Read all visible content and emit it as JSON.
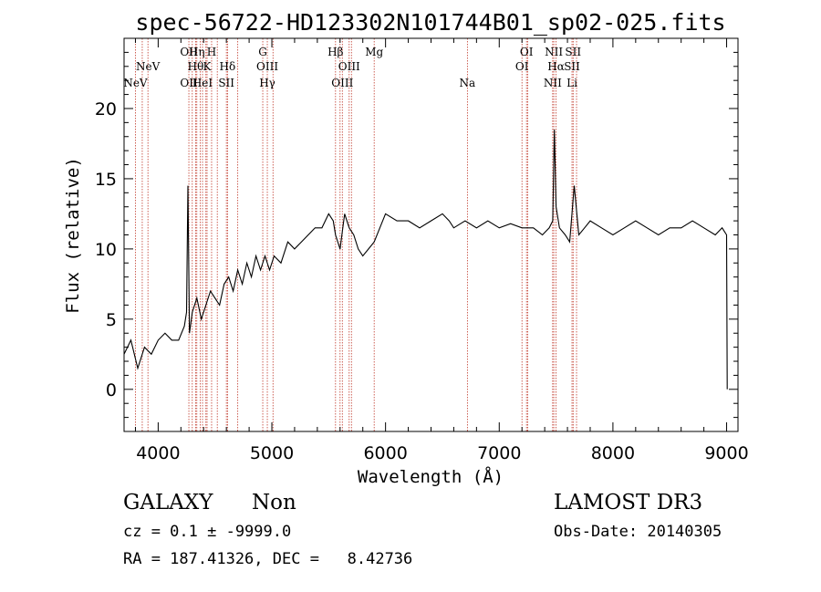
{
  "chart_data": {
    "type": "line",
    "title": "spec-56722-HD123302N101744B01_sp02-025.fits",
    "xlabel": "Wavelength (Å)",
    "ylabel": "Flux (relative)",
    "xlim": [
      3700,
      9100
    ],
    "ylim": [
      -3,
      25
    ],
    "x_ticks": [
      4000,
      5000,
      6000,
      7000,
      8000,
      9000
    ],
    "y_ticks": [
      0,
      5,
      10,
      15,
      20
    ],
    "grid": false,
    "series": [
      {
        "x": [
          3700,
          3760,
          3820,
          3880,
          3940,
          4000,
          4060,
          4120,
          4180,
          4230,
          4250,
          4262,
          4275,
          4300,
          4340,
          4380,
          4420,
          4460,
          4500,
          4540,
          4580,
          4620,
          4660,
          4700,
          4740,
          4780,
          4820,
          4860,
          4900,
          4940,
          4980,
          5020,
          5080,
          5140,
          5200,
          5260,
          5320,
          5380,
          5440,
          5500,
          5540,
          5560,
          5600,
          5640,
          5680,
          5720,
          5760,
          5800,
          5850,
          5900,
          5950,
          6000,
          6100,
          6200,
          6300,
          6400,
          6500,
          6560,
          6600,
          6700,
          6800,
          6900,
          7000,
          7100,
          7200,
          7300,
          7380,
          7440,
          7470,
          7485,
          7500,
          7530,
          7580,
          7620,
          7660,
          7700,
          7750,
          7800,
          7900,
          8000,
          8100,
          8200,
          8300,
          8400,
          8500,
          8600,
          8700,
          8800,
          8900,
          8960,
          9000,
          9005
        ],
        "y": [
          2.5,
          3.5,
          1.5,
          3.0,
          2.5,
          3.5,
          4.0,
          3.5,
          3.5,
          4.5,
          5.5,
          14.5,
          4.0,
          5.5,
          6.5,
          5.0,
          6.0,
          7.0,
          6.5,
          6.0,
          7.5,
          8.0,
          7.0,
          8.5,
          7.5,
          9.0,
          8.0,
          9.5,
          8.5,
          9.5,
          8.5,
          9.5,
          9.0,
          10.5,
          10.0,
          10.5,
          11.0,
          11.5,
          11.5,
          12.5,
          12.0,
          11.0,
          10.0,
          12.5,
          11.5,
          11.0,
          10.0,
          9.5,
          10.0,
          10.5,
          11.5,
          12.5,
          12.0,
          12.0,
          11.5,
          12.0,
          12.5,
          12.0,
          11.5,
          12.0,
          11.5,
          12.0,
          11.5,
          11.8,
          11.5,
          11.5,
          11.0,
          11.5,
          12.0,
          18.5,
          13.0,
          11.5,
          11.0,
          10.5,
          14.5,
          11.0,
          11.5,
          12.0,
          11.5,
          11.0,
          11.5,
          12.0,
          11.5,
          11.0,
          11.5,
          11.5,
          12.0,
          11.5,
          11.0,
          11.5,
          11.0,
          0.0
        ]
      }
    ],
    "line_color": "#000000",
    "marker_color": "#c0392b",
    "line_markers": [
      {
        "label": "NeV",
        "x": 3800,
        "row": 2
      },
      {
        "label": "NeV",
        "x": 3910,
        "row": 1
      },
      {
        "label": "OII",
        "x": 4270,
        "row": 0
      },
      {
        "label": "OII",
        "x": 4270,
        "row": 2
      },
      {
        "label": "Hη",
        "x": 4340,
        "row": 0
      },
      {
        "label": "Hθ",
        "x": 4330,
        "row": 1
      },
      {
        "label": "HeI",
        "x": 4390,
        "row": 2
      },
      {
        "label": "H",
        "x": 4470,
        "row": 0
      },
      {
        "label": "K",
        "x": 4430,
        "row": 1
      },
      {
        "label": "Hδ",
        "x": 4610,
        "row": 1
      },
      {
        "label": "SII",
        "x": 4600,
        "row": 2
      },
      {
        "label": "G",
        "x": 4920,
        "row": 0
      },
      {
        "label": "OIII",
        "x": 4960,
        "row": 1
      },
      {
        "label": "Hγ",
        "x": 4960,
        "row": 2
      },
      {
        "label": "Hβ",
        "x": 5560,
        "row": 0
      },
      {
        "label": "OIII",
        "x": 5680,
        "row": 1
      },
      {
        "label": "OIII",
        "x": 5620,
        "row": 2
      },
      {
        "label": "Mg",
        "x": 5900,
        "row": 0
      },
      {
        "label": "Na",
        "x": 6720,
        "row": 2
      },
      {
        "label": "OI",
        "x": 7240,
        "row": 0
      },
      {
        "label": "OI",
        "x": 7200,
        "row": 1
      },
      {
        "label": "NII",
        "x": 7480,
        "row": 0
      },
      {
        "label": "Hα",
        "x": 7500,
        "row": 1
      },
      {
        "label": "NII",
        "x": 7470,
        "row": 2
      },
      {
        "label": "SII",
        "x": 7650,
        "row": 0
      },
      {
        "label": "SII",
        "x": 7640,
        "row": 1
      },
      {
        "label": "Li",
        "x": 7640,
        "row": 2
      }
    ],
    "extra_marker_lines": [
      3860,
      4300,
      4370,
      4420,
      4520,
      4700,
      5010,
      5600,
      5700,
      7250,
      7500,
      7680
    ]
  },
  "footer": {
    "object_class": "GALAXY",
    "subclass": "Non",
    "survey": "LAMOST DR3",
    "redshift": "cz = 0.1 ± -9999.0",
    "obs_date": "Obs-Date: 20140305",
    "coordinates": "RA = 187.41326, DEC =   8.42736"
  }
}
